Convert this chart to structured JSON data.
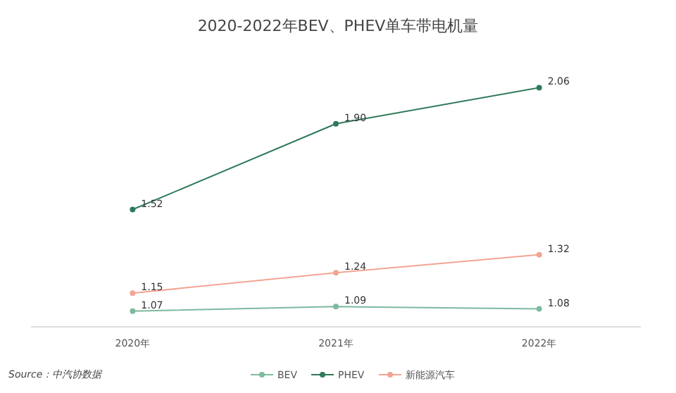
{
  "chart_data": {
    "type": "line",
    "title": "2020-2022年BEV、PHEV单车带电机量",
    "categories": [
      "2020年",
      "2021年",
      "2022年"
    ],
    "series": [
      {
        "name": "BEV",
        "color": "#7dba9f",
        "values": [
          1.07,
          1.09,
          1.08
        ],
        "value_labels": [
          "1.07",
          "1.09",
          "1.08"
        ]
      },
      {
        "name": "PHEV",
        "color": "#2f7a5a",
        "values": [
          1.52,
          1.9,
          2.06
        ],
        "value_labels": [
          "1.52",
          "1.90",
          "2.06"
        ]
      },
      {
        "name": "新能源汽车",
        "color": "#f2a593",
        "values": [
          1.15,
          1.24,
          1.32
        ],
        "value_labels": [
          "1.15",
          "1.24",
          "1.32"
        ]
      }
    ],
    "tick_labels": "x",
    "marker": "circle",
    "legend": "bottom",
    "grid": false,
    "annotations": [
      "Source：中汽协数据"
    ]
  }
}
